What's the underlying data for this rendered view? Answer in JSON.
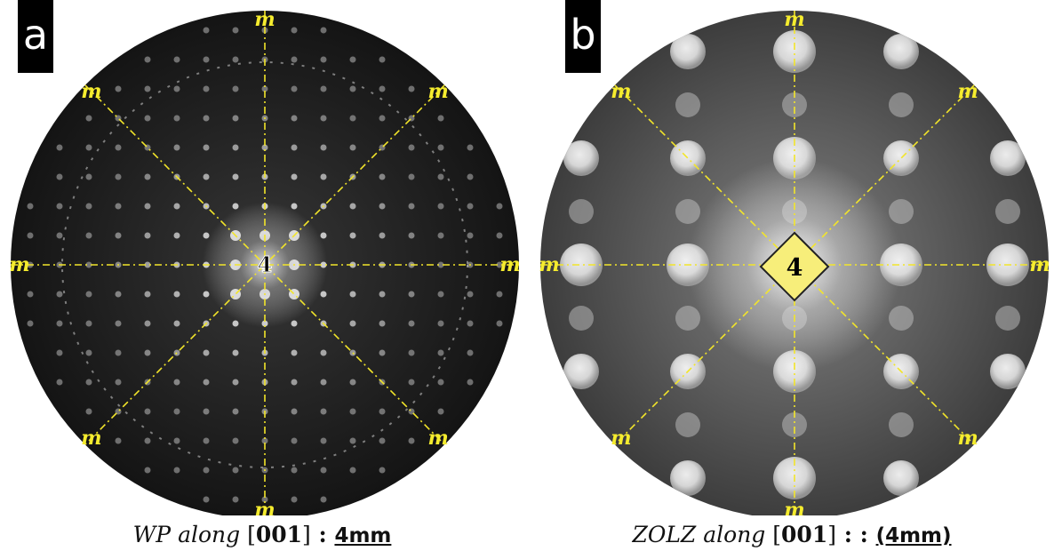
{
  "panels": {
    "a": {
      "label": "a",
      "center_symbol": "4",
      "mirror_label": "m",
      "caption": {
        "italic_text": "WP along",
        "bracket_open": "[",
        "zone_axis": "001",
        "bracket_close": "]",
        "separator": " : ",
        "symmetry": "4mm"
      }
    },
    "b": {
      "label": "b",
      "center_symbol": "4",
      "mirror_label": "m",
      "caption": {
        "italic_text": "ZOLZ along",
        "bracket_open": "[",
        "zone_axis": "001",
        "bracket_close": "]",
        "separator": " : : ",
        "symmetry": "(4mm)"
      }
    }
  },
  "colors": {
    "mirror_line": "#f2e52a",
    "center_badge_fill": "#f7ee7a",
    "caption_text": "#111111",
    "label_bg": "#000000",
    "label_text": "#ffffff"
  }
}
